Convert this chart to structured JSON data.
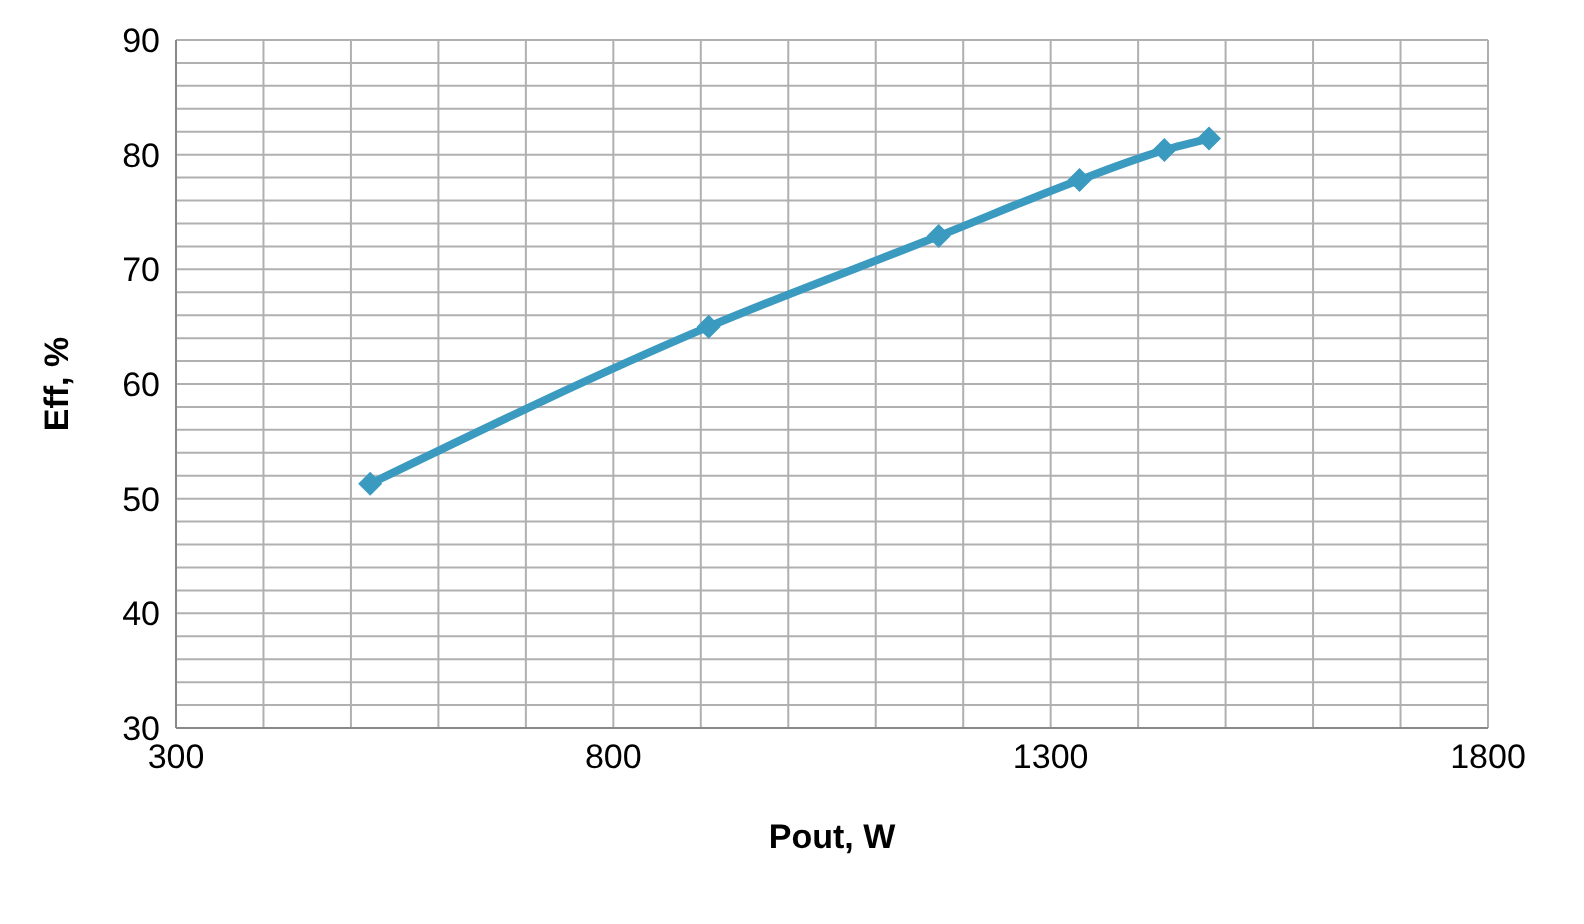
{
  "chart_data": {
    "type": "line",
    "xlabel": "Pout, W",
    "ylabel": "Eff, %",
    "x": [
      522,
      909,
      1172,
      1333,
      1430,
      1481
    ],
    "series": [
      {
        "color": "#3a9ac0",
        "values": [
          51.3,
          65.0,
          72.9,
          77.8,
          80.4,
          81.4
        ]
      }
    ],
    "xlim": [
      300,
      1800
    ],
    "xticks": [
      300,
      {
        "value": 400,
        "label": null
      },
      {
        "value": 500,
        "label": null
      },
      {
        "value": 600,
        "label": null
      },
      {
        "value": 700,
        "label": null
      },
      800,
      {
        "value": 900,
        "label": null
      },
      {
        "value": 1000,
        "label": null
      },
      {
        "value": 1100,
        "label": null
      },
      {
        "value": 1200,
        "label": null
      },
      1300,
      {
        "value": 1400,
        "label": null
      },
      {
        "value": 1500,
        "label": null
      },
      {
        "value": 1600,
        "label": null
      },
      {
        "value": 1700,
        "label": null
      },
      1800
    ],
    "ylim": [
      30,
      90
    ],
    "yticks": [
      30,
      {
        "value": 32,
        "label": null
      },
      {
        "value": 34,
        "label": null
      },
      {
        "value": 36,
        "label": null
      },
      {
        "value": 38,
        "label": null
      },
      40,
      {
        "value": 42,
        "label": null
      },
      {
        "value": 44,
        "label": null
      },
      {
        "value": 46,
        "label": null
      },
      {
        "value": 48,
        "label": null
      },
      50,
      {
        "value": 52,
        "label": null
      },
      {
        "value": 54,
        "label": null
      },
      {
        "value": 56,
        "label": null
      },
      {
        "value": 58,
        "label": null
      },
      60,
      {
        "value": 62,
        "label": null
      },
      {
        "value": 64,
        "label": null
      },
      {
        "value": 66,
        "label": null
      },
      {
        "value": 68,
        "label": null
      },
      70,
      {
        "value": 72,
        "label": null
      },
      {
        "value": 74,
        "label": null
      },
      {
        "value": 76,
        "label": null
      },
      {
        "value": 78,
        "label": null
      },
      80,
      {
        "value": 82,
        "label": null
      },
      {
        "value": 84,
        "label": null
      },
      {
        "value": 86,
        "label": null
      },
      {
        "value": 88,
        "label": null
      },
      90
    ],
    "grid": true,
    "marker": "diamond",
    "line_style": "solid",
    "legend": false
  }
}
